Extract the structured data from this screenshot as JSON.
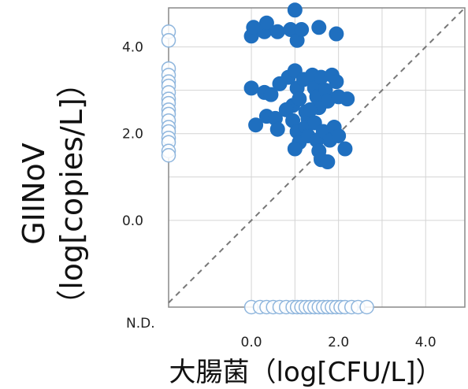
{
  "chart_data": {
    "type": "scatter",
    "xlabel": "大腸菌（log[CFU/L]）",
    "ylabel_line1": "GIINoV",
    "ylabel_line2": "（log[copies/L]）",
    "xlim": [
      -1.9,
      4.9
    ],
    "ylim": [
      -2.0,
      4.9
    ],
    "x_ticks": [
      {
        "value": 0.0,
        "label": "0.0"
      },
      {
        "value": 2.0,
        "label": "2.0"
      },
      {
        "value": 4.0,
        "label": "4.0"
      }
    ],
    "y_ticks": [
      {
        "value": 0.0,
        "label": "0.0"
      },
      {
        "value": 2.0,
        "label": "2.0"
      },
      {
        "value": 4.0,
        "label": "4.0"
      }
    ],
    "nd_label": "N.D.",
    "diagonal": true,
    "grid": true,
    "colors": {
      "detected": "#1f6fbf",
      "nd_fill": "#ffffff",
      "nd_stroke": "#8fb6dd",
      "grid": "#d4d4d4",
      "diagonal": "#777777"
    },
    "series": [
      {
        "points": [
          [
            0.0,
            4.25
          ],
          [
            0.05,
            4.45
          ],
          [
            0.3,
            4.35
          ],
          [
            0.35,
            4.55
          ],
          [
            0.6,
            4.35
          ],
          [
            0.9,
            4.4
          ],
          [
            1.0,
            4.85
          ],
          [
            1.05,
            4.15
          ],
          [
            1.15,
            4.4
          ],
          [
            1.55,
            4.45
          ],
          [
            1.95,
            4.3
          ],
          [
            0.0,
            3.05
          ],
          [
            0.3,
            2.95
          ],
          [
            0.45,
            2.9
          ],
          [
            0.65,
            3.15
          ],
          [
            0.85,
            3.3
          ],
          [
            0.95,
            2.65
          ],
          [
            1.0,
            3.45
          ],
          [
            1.05,
            3.05
          ],
          [
            1.1,
            2.8
          ],
          [
            1.2,
            3.25
          ],
          [
            1.25,
            2.5
          ],
          [
            1.3,
            2.35
          ],
          [
            1.4,
            3.35
          ],
          [
            1.45,
            3.05
          ],
          [
            1.5,
            2.85
          ],
          [
            1.55,
            2.6
          ],
          [
            1.6,
            3.3
          ],
          [
            1.7,
            3.0
          ],
          [
            1.75,
            2.75
          ],
          [
            1.85,
            3.35
          ],
          [
            1.95,
            3.2
          ],
          [
            2.0,
            2.85
          ],
          [
            2.2,
            2.8
          ],
          [
            0.1,
            2.2
          ],
          [
            0.35,
            2.4
          ],
          [
            0.55,
            2.35
          ],
          [
            0.6,
            2.1
          ],
          [
            0.8,
            2.55
          ],
          [
            0.95,
            2.3
          ],
          [
            1.05,
            2.05
          ],
          [
            1.1,
            1.8
          ],
          [
            1.25,
            2.15
          ],
          [
            1.3,
            1.95
          ],
          [
            1.45,
            2.25
          ],
          [
            1.5,
            1.85
          ],
          [
            1.55,
            1.6
          ],
          [
            1.6,
            1.4
          ],
          [
            1.65,
            2.05
          ],
          [
            1.75,
            1.35
          ],
          [
            1.8,
            1.85
          ],
          [
            1.9,
            2.15
          ],
          [
            2.0,
            1.95
          ],
          [
            2.15,
            1.65
          ],
          [
            1.0,
            1.65
          ],
          [
            1.35,
            2.55
          ]
        ]
      },
      {
        "points": [
          [
            -1.9,
            4.35
          ],
          [
            -1.9,
            4.15
          ],
          [
            -1.9,
            3.5
          ],
          [
            -1.9,
            3.35
          ],
          [
            -1.9,
            3.2
          ],
          [
            -1.9,
            3.1
          ],
          [
            -1.9,
            2.95
          ],
          [
            -1.9,
            2.8
          ],
          [
            -1.9,
            2.7
          ],
          [
            -1.9,
            2.55
          ],
          [
            -1.9,
            2.45
          ],
          [
            -1.9,
            2.3
          ],
          [
            -1.9,
            2.15
          ],
          [
            -1.9,
            2.05
          ],
          [
            -1.9,
            1.9
          ],
          [
            -1.9,
            1.8
          ],
          [
            -1.9,
            1.6
          ],
          [
            -1.9,
            1.5
          ]
        ]
      },
      {
        "points": [
          [
            0.0,
            -2.0
          ],
          [
            0.2,
            -2.0
          ],
          [
            0.35,
            -2.0
          ],
          [
            0.5,
            -2.0
          ],
          [
            0.65,
            -2.0
          ],
          [
            0.8,
            -2.0
          ],
          [
            0.95,
            -2.0
          ],
          [
            1.05,
            -2.0
          ],
          [
            1.15,
            -2.0
          ],
          [
            1.25,
            -2.0
          ],
          [
            1.35,
            -2.0
          ],
          [
            1.45,
            -2.0
          ],
          [
            1.55,
            -2.0
          ],
          [
            1.65,
            -2.0
          ],
          [
            1.75,
            -2.0
          ],
          [
            1.85,
            -2.0
          ],
          [
            1.95,
            -2.0
          ],
          [
            2.05,
            -2.0
          ],
          [
            2.15,
            -2.0
          ],
          [
            2.3,
            -2.0
          ],
          [
            2.45,
            -2.0
          ],
          [
            2.65,
            -2.0
          ]
        ]
      }
    ]
  }
}
